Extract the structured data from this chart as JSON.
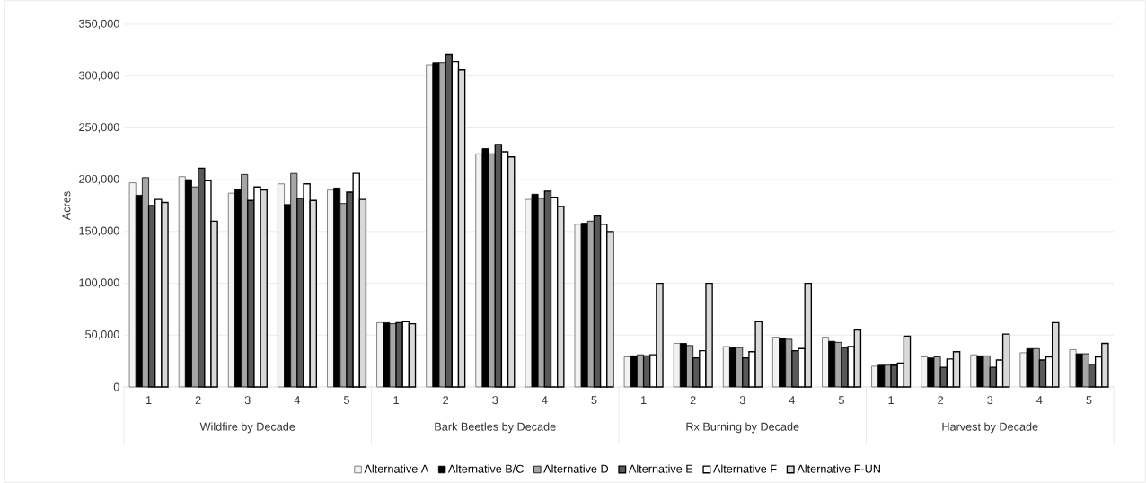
{
  "chart_data": {
    "type": "bar",
    "ylabel": "Acres",
    "categories": [
      "1",
      "2",
      "3",
      "4",
      "5",
      "1",
      "2",
      "3",
      "4",
      "5",
      "1",
      "2",
      "3",
      "4",
      "5",
      "1",
      "2",
      "3",
      "4",
      "5"
    ],
    "annotations": [
      "Wildfire by Decade",
      "Bark Beetles by Decade",
      "Rx Burning by Decade",
      "Harvest by Decade"
    ],
    "series": [
      {
        "name": "Alternative A",
        "color": "#f2f2f2",
        "values": [
          197000,
          203000,
          187000,
          196000,
          190000,
          62000,
          311000,
          225000,
          181000,
          157000,
          29000,
          42000,
          39000,
          48000,
          48000,
          20000,
          29000,
          31000,
          33000,
          36000
        ]
      },
      {
        "name": "Alternative B/C",
        "color": "#000000",
        "values": [
          185000,
          200000,
          191000,
          176000,
          192000,
          62000,
          313000,
          230000,
          186000,
          158000,
          30000,
          42000,
          38000,
          47000,
          44000,
          21000,
          28000,
          30000,
          37000,
          32000
        ]
      },
      {
        "name": "Alternative D",
        "color": "#a6a6a6",
        "values": [
          202000,
          193000,
          205000,
          206000,
          177000,
          61000,
          313000,
          225000,
          182000,
          160000,
          31000,
          40000,
          38000,
          46000,
          43000,
          21000,
          29000,
          30000,
          37000,
          32000
        ]
      },
      {
        "name": "Alternative E",
        "color": "#595959",
        "values": [
          175000,
          211000,
          180000,
          182000,
          188000,
          62000,
          321000,
          234000,
          189000,
          165000,
          30000,
          28000,
          28000,
          35000,
          38000,
          21000,
          19000,
          19000,
          26000,
          22000
        ]
      },
      {
        "name": "Alternative F",
        "color": "#ffffff",
        "values": [
          181000,
          199000,
          193000,
          196000,
          206000,
          63000,
          314000,
          227000,
          183000,
          157000,
          31000,
          35000,
          34000,
          37000,
          39000,
          23000,
          27000,
          26000,
          29000,
          29000
        ]
      },
      {
        "name": "Alternative F-UN",
        "color": "#d9d9d9",
        "values": [
          178000,
          160000,
          190000,
          180000,
          181000,
          61000,
          306000,
          222000,
          174000,
          150000,
          100000,
          100000,
          63000,
          100000,
          55000,
          49000,
          34000,
          51000,
          62000,
          42000
        ]
      }
    ],
    "ylim": [
      0,
      350000
    ],
    "yticks": [
      0,
      {
        "value": 50000,
        "label": "50,000"
      },
      {
        "value": 100000,
        "label": "100,000"
      },
      {
        "value": 150000,
        "label": "150,000"
      },
      {
        "value": 200000,
        "label": "200,000"
      },
      {
        "value": 250000,
        "label": "250,000"
      },
      {
        "value": 300000,
        "label": "300,000"
      },
      {
        "value": 350000,
        "label": "350,000"
      }
    ],
    "grid": "y",
    "legend": "bottom"
  }
}
